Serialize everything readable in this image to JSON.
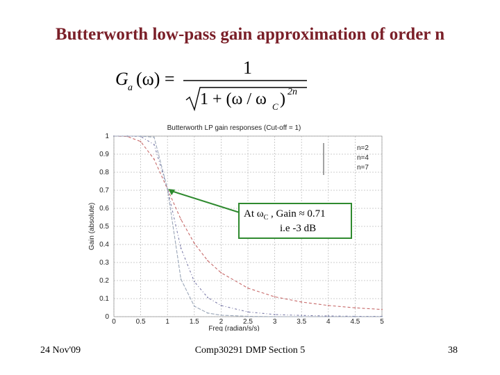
{
  "slide": {
    "title": "Butterworth low-pass gain approximation  of order n",
    "formula": {
      "lhs": "G",
      "lhs_sub": "a",
      "lhs_arg": "(ω) =",
      "numerator": "1",
      "denominator": "1 + (ω / ω",
      "denominator_sub": "C",
      "denominator_close": ")",
      "exponent": "2n"
    },
    "annotation": {
      "line1_prefix": "At ω",
      "line1_sub": "C",
      "line1_suffix": " , Gain ≈ 0.71",
      "line2": "i.e -3 dB"
    },
    "footer": {
      "date": "24 Nov'09",
      "course": "Comp30291 DMP Section 5",
      "page": "38"
    }
  },
  "chart_data": {
    "type": "line",
    "title": "Butterworth LP gain responses (Cut-off = 1)",
    "xlabel": "Freq (radian/s/s)",
    "ylabel": "Gain (absolute)",
    "xlim": [
      0,
      5
    ],
    "ylim": [
      0,
      1
    ],
    "xticks": [
      "0",
      "0.5",
      "1",
      "1.5",
      "2",
      "2.5",
      "3",
      "3.5",
      "4",
      "4.5",
      "5"
    ],
    "yticks": [
      "0",
      "0.1",
      "0.2",
      "0.3",
      "0.4",
      "0.5",
      "0.6",
      "0.7",
      "0.8",
      "0.9",
      "1"
    ],
    "grid": true,
    "legend_position": "top-right",
    "x": [
      0,
      0.25,
      0.5,
      0.75,
      1.0,
      1.25,
      1.5,
      1.75,
      2.0,
      2.5,
      3.0,
      3.5,
      4.0,
      4.5,
      5.0
    ],
    "series": [
      {
        "name": "n=2",
        "color": "#c76a6a",
        "values": [
          1.0,
          0.998,
          0.97,
          0.872,
          0.707,
          0.539,
          0.406,
          0.31,
          0.243,
          0.158,
          0.11,
          0.081,
          0.062,
          0.049,
          0.04
        ]
      },
      {
        "name": "n=4",
        "color": "#7a7aa8",
        "values": [
          1.0,
          1.0,
          0.998,
          0.953,
          0.707,
          0.38,
          0.194,
          0.106,
          0.062,
          0.026,
          0.012,
          0.007,
          0.004,
          0.002,
          0.002
        ]
      },
      {
        "name": "n=7",
        "color": "#9aa6b8",
        "values": [
          1.0,
          1.0,
          1.0,
          0.994,
          0.707,
          0.208,
          0.058,
          0.02,
          0.008,
          0.002,
          0.0,
          0.0,
          0.0,
          0.0,
          0.0
        ]
      }
    ]
  }
}
